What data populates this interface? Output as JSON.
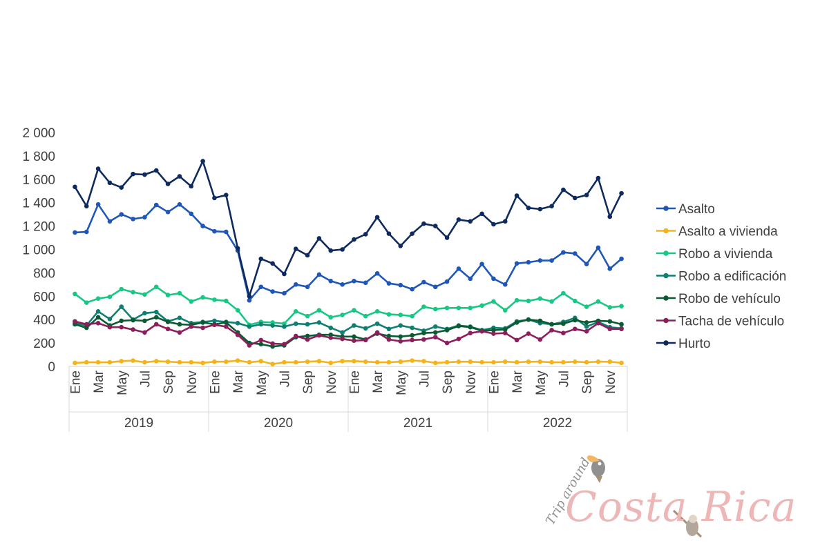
{
  "chart_data": {
    "type": "line",
    "ylim": [
      0,
      2000
    ],
    "yticks": [
      "2 000",
      "1 800",
      "1 600",
      "1 400",
      "1 200",
      "1 000",
      "800",
      "600",
      "400",
      "200",
      "0"
    ],
    "ytick_values": [
      2000,
      1800,
      1600,
      1400,
      1200,
      1000,
      800,
      600,
      400,
      200,
      0
    ],
    "month_labels": [
      "Ene",
      "Mar",
      "May",
      "Jul",
      "Sep",
      "Nov"
    ],
    "years": [
      "2019",
      "2020",
      "2021",
      "2022"
    ],
    "legend_position": "right",
    "series": [
      {
        "name": "Asalto",
        "color": "#1f56b8",
        "values": [
          1145,
          1150,
          1385,
          1240,
          1300,
          1260,
          1275,
          1380,
          1320,
          1385,
          1305,
          1200,
          1155,
          1150,
          990,
          565,
          680,
          640,
          625,
          700,
          680,
          785,
          730,
          700,
          730,
          715,
          795,
          710,
          695,
          660,
          720,
          680,
          725,
          835,
          750,
          875,
          750,
          700,
          880,
          890,
          905,
          905,
          975,
          965,
          875,
          1015,
          835,
          920
        ]
      },
      {
        "name": "Asalto a vivienda",
        "color": "#f5b31a",
        "values": [
          30,
          35,
          35,
          35,
          45,
          50,
          35,
          45,
          40,
          35,
          35,
          30,
          40,
          40,
          50,
          35,
          45,
          20,
          35,
          35,
          40,
          45,
          30,
          45,
          45,
          40,
          35,
          35,
          40,
          50,
          45,
          30,
          35,
          40,
          40,
          35,
          35,
          40,
          35,
          40,
          40,
          35,
          35,
          40,
          35,
          40,
          40,
          30
        ]
      },
      {
        "name": "Robo a vivienda",
        "color": "#19c784",
        "values": [
          620,
          545,
          580,
          595,
          660,
          635,
          615,
          680,
          610,
          625,
          555,
          590,
          570,
          560,
          480,
          355,
          380,
          375,
          365,
          470,
          430,
          480,
          420,
          440,
          480,
          430,
          470,
          445,
          440,
          430,
          510,
          490,
          500,
          500,
          500,
          520,
          555,
          480,
          565,
          560,
          580,
          555,
          625,
          560,
          510,
          555,
          505,
          515
        ]
      },
      {
        "name": "Robo a edificación",
        "color": "#0f7f72",
        "values": [
          370,
          350,
          470,
          405,
          510,
          400,
          455,
          465,
          385,
          415,
          370,
          380,
          390,
          380,
          370,
          340,
          360,
          350,
          340,
          365,
          360,
          375,
          330,
          290,
          350,
          325,
          365,
          320,
          350,
          330,
          305,
          340,
          320,
          350,
          340,
          310,
          330,
          325,
          385,
          400,
          370,
          360,
          380,
          415,
          340,
          380,
          335,
          325
        ]
      },
      {
        "name": "Robo de vehículo",
        "color": "#0a5a32",
        "values": [
          360,
          330,
          420,
          350,
          390,
          395,
          390,
          420,
          380,
          360,
          355,
          375,
          360,
          375,
          290,
          200,
          190,
          170,
          180,
          250,
          260,
          270,
          270,
          255,
          255,
          230,
          280,
          260,
          255,
          265,
          285,
          290,
          310,
          345,
          335,
          305,
          310,
          315,
          375,
          400,
          390,
          360,
          365,
          395,
          375,
          390,
          385,
          360
        ]
      },
      {
        "name": "Tacha de vehículo",
        "color": "#8c1e5c",
        "values": [
          385,
          360,
          370,
          335,
          335,
          315,
          290,
          360,
          320,
          290,
          340,
          330,
          355,
          340,
          270,
          180,
          225,
          195,
          190,
          260,
          230,
          265,
          245,
          235,
          220,
          225,
          290,
          230,
          215,
          225,
          230,
          250,
          200,
          235,
          285,
          300,
          280,
          285,
          225,
          280,
          230,
          310,
          285,
          320,
          300,
          370,
          320,
          320
        ]
      },
      {
        "name": "Hurto",
        "color": "#0e2a5e",
        "values": [
          1535,
          1370,
          1690,
          1570,
          1530,
          1645,
          1640,
          1675,
          1560,
          1625,
          1540,
          1755,
          1440,
          1465,
          1010,
          600,
          920,
          880,
          790,
          1005,
          950,
          1095,
          990,
          1000,
          1085,
          1130,
          1275,
          1135,
          1030,
          1135,
          1220,
          1200,
          1100,
          1255,
          1240,
          1305,
          1215,
          1240,
          1460,
          1355,
          1345,
          1370,
          1510,
          1440,
          1465,
          1610,
          1280,
          1480
        ]
      }
    ]
  },
  "watermark": {
    "small": "Trip around",
    "large": "Costa Rica"
  }
}
